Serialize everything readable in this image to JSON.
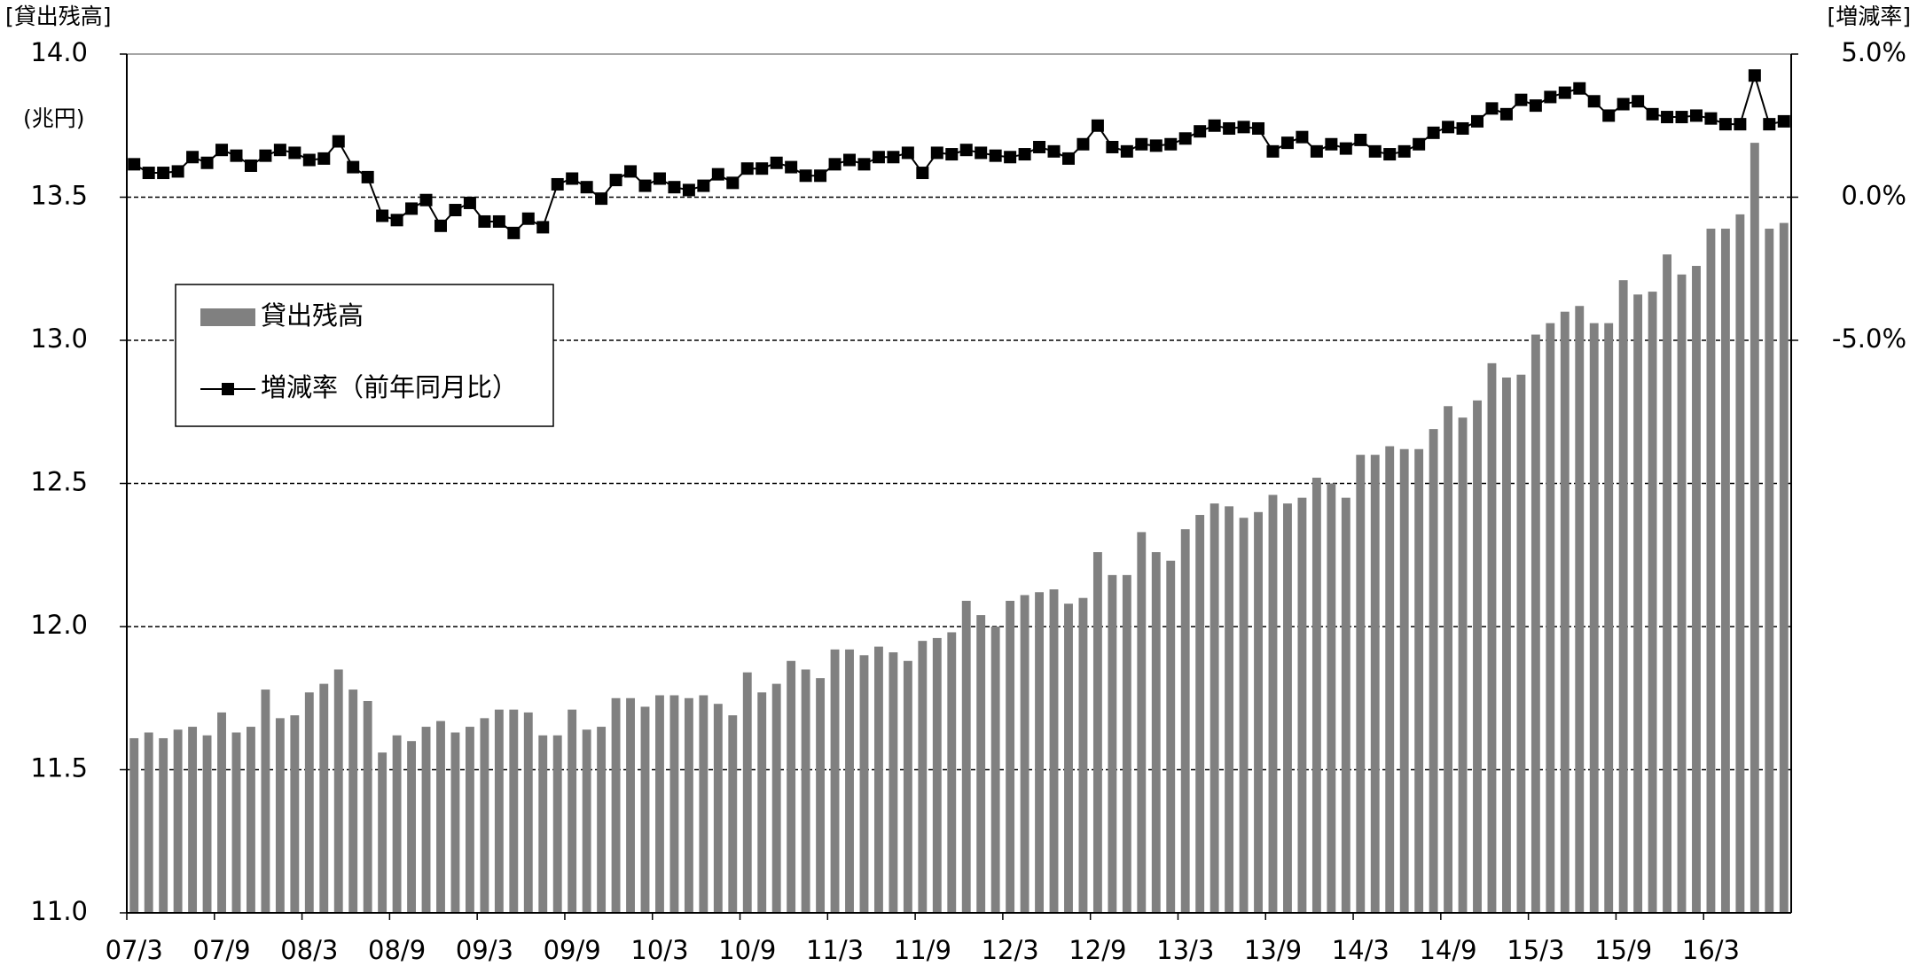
{
  "chart_data": {
    "type": "combo",
    "y_label": "[貸出残高]",
    "y_unit": "(兆円)",
    "y2_label": "[増減率]",
    "categories": [
      "07/3",
      null,
      null,
      null,
      null,
      null,
      "07/9",
      null,
      null,
      null,
      null,
      null,
      "08/3",
      null,
      null,
      null,
      null,
      null,
      "08/9",
      null,
      null,
      null,
      null,
      null,
      "09/3",
      null,
      null,
      null,
      null,
      null,
      "09/9",
      null,
      null,
      null,
      null,
      null,
      "10/3",
      null,
      null,
      null,
      null,
      null,
      "10/9",
      null,
      null,
      null,
      null,
      null,
      "11/3",
      null,
      null,
      null,
      null,
      null,
      "11/9",
      null,
      null,
      null,
      null,
      null,
      "12/3",
      null,
      null,
      null,
      null,
      null,
      "12/9",
      null,
      null,
      null,
      null,
      null,
      "13/3",
      null,
      null,
      null,
      null,
      null,
      "13/9",
      null,
      null,
      null,
      null,
      null,
      "14/3",
      null,
      null,
      null,
      null,
      null,
      "14/9",
      null,
      null,
      null,
      null,
      null,
      "15/3",
      null,
      null,
      null,
      null,
      null,
      "15/9",
      null,
      null,
      null,
      null,
      null,
      "16/3",
      null,
      null,
      null,
      null,
      null
    ],
    "series": [
      {
        "name": "貸出残高",
        "type": "bar",
        "color": "#808080",
        "values": [
          11.61,
          11.63,
          11.61,
          11.64,
          11.65,
          11.62,
          11.7,
          11.63,
          11.65,
          11.78,
          11.68,
          11.69,
          11.77,
          11.8,
          11.85,
          11.78,
          11.74,
          11.56,
          11.62,
          11.6,
          11.65,
          11.67,
          11.63,
          11.65,
          11.68,
          11.71,
          11.71,
          11.7,
          11.62,
          11.62,
          11.71,
          11.64,
          11.65,
          11.75,
          11.75,
          11.72,
          11.76,
          11.76,
          11.75,
          11.76,
          11.73,
          11.69,
          11.84,
          11.77,
          11.8,
          11.88,
          11.85,
          11.82,
          11.92,
          11.92,
          11.9,
          11.93,
          11.91,
          11.88,
          11.95,
          11.96,
          11.98,
          12.09,
          12.04,
          12.0,
          12.09,
          12.11,
          12.12,
          12.13,
          12.08,
          12.1,
          12.26,
          12.18,
          12.18,
          12.33,
          12.26,
          12.23,
          12.34,
          12.39,
          12.43,
          12.42,
          12.38,
          12.4,
          12.46,
          12.43,
          12.45,
          12.52,
          12.5,
          12.45,
          12.6,
          12.6,
          12.63,
          12.62,
          12.62,
          12.69,
          12.77,
          12.73,
          12.79,
          12.92,
          12.87,
          12.88,
          13.02,
          13.06,
          13.1,
          13.12,
          13.06,
          13.06,
          13.21,
          13.16,
          13.17,
          13.3,
          13.23,
          13.26,
          13.39,
          13.39,
          13.44,
          13.69,
          13.39,
          13.41
        ]
      },
      {
        "name": "増減率（前年同月比）",
        "type": "line",
        "axis": "y2",
        "color": "#000000",
        "values": [
          1.15,
          0.85,
          0.85,
          0.9,
          1.4,
          1.2,
          1.65,
          1.45,
          1.1,
          1.45,
          1.65,
          1.55,
          1.3,
          1.35,
          1.95,
          1.05,
          0.7,
          -0.65,
          -0.8,
          -0.4,
          -0.1,
          -1.0,
          -0.45,
          -0.2,
          -0.85,
          -0.85,
          -1.25,
          -0.75,
          -1.05,
          0.45,
          0.65,
          0.35,
          -0.05,
          0.6,
          0.9,
          0.4,
          0.65,
          0.35,
          0.25,
          0.4,
          0.8,
          0.5,
          1.0,
          1.0,
          1.2,
          1.05,
          0.75,
          0.75,
          1.15,
          1.3,
          1.15,
          1.4,
          1.4,
          1.55,
          0.85,
          1.55,
          1.5,
          1.65,
          1.55,
          1.45,
          1.4,
          1.5,
          1.75,
          1.6,
          1.35,
          1.85,
          2.5,
          1.75,
          1.6,
          1.85,
          1.8,
          1.85,
          2.05,
          2.3,
          2.5,
          2.4,
          2.45,
          2.4,
          1.6,
          1.9,
          2.1,
          1.6,
          1.85,
          1.7,
          2.0,
          1.6,
          1.5,
          1.6,
          1.85,
          2.25,
          2.45,
          2.4,
          2.65,
          3.1,
          2.9,
          3.4,
          3.2,
          3.5,
          3.65,
          3.8,
          3.35,
          2.85,
          3.25,
          3.35,
          2.9,
          2.8,
          2.8,
          2.85,
          2.75,
          2.55,
          2.55,
          4.25,
          2.55,
          2.65
        ]
      }
    ],
    "ylim": [
      11,
      14
    ],
    "yticks": [
      {
        "value": 11,
        "label": "11.0"
      },
      {
        "value": 11.5,
        "label": "11.5"
      },
      {
        "value": 12,
        "label": "12.0"
      },
      {
        "value": 12.5,
        "label": "12.5"
      },
      {
        "value": 13,
        "label": "13.0"
      },
      {
        "value": 13.5,
        "label": "13.5"
      },
      {
        "value": 14,
        "label": "14.0"
      }
    ],
    "y2lim": [
      -25,
      5
    ],
    "y2ticks": [
      {
        "value": 5,
        "label": "5.0%"
      },
      {
        "value": 0,
        "label": "0.0%"
      },
      {
        "value": -5,
        "label": "-5.0%"
      }
    ],
    "grid": true,
    "legend": "upper left"
  }
}
